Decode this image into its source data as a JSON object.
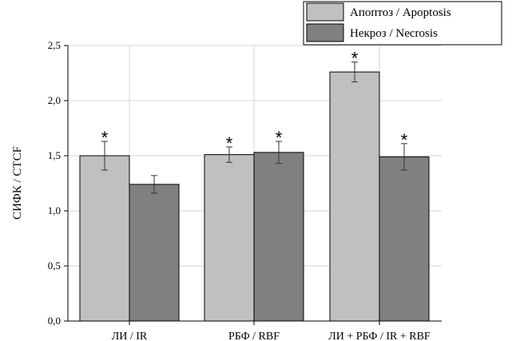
{
  "chart_data": {
    "type": "bar",
    "title": "",
    "xlabel": "",
    "ylabel": "СИФК / CTCF",
    "ylim": [
      0,
      2.5
    ],
    "yticks": [
      "0,0",
      "0,5",
      "1,0",
      "1,5",
      "2,0",
      "2,5"
    ],
    "grid": true,
    "legend_position": "top-right",
    "categories": [
      "ЛИ / IR",
      "РБФ / RBF",
      "ЛИ + РБФ / IR + RBF"
    ],
    "series": [
      {
        "name": "Апоптоз / Apoptosis",
        "color": "#c0c0c0",
        "values": [
          1.5,
          1.51,
          2.26
        ],
        "errors": [
          0.13,
          0.07,
          0.09
        ],
        "significant": [
          "*",
          "*",
          "*"
        ]
      },
      {
        "name": "Некроз / Necrosis",
        "color": "#808080",
        "values": [
          1.24,
          1.53,
          1.49
        ],
        "errors": [
          0.08,
          0.1,
          0.12
        ],
        "significant": [
          "",
          "*",
          "*"
        ]
      }
    ]
  }
}
